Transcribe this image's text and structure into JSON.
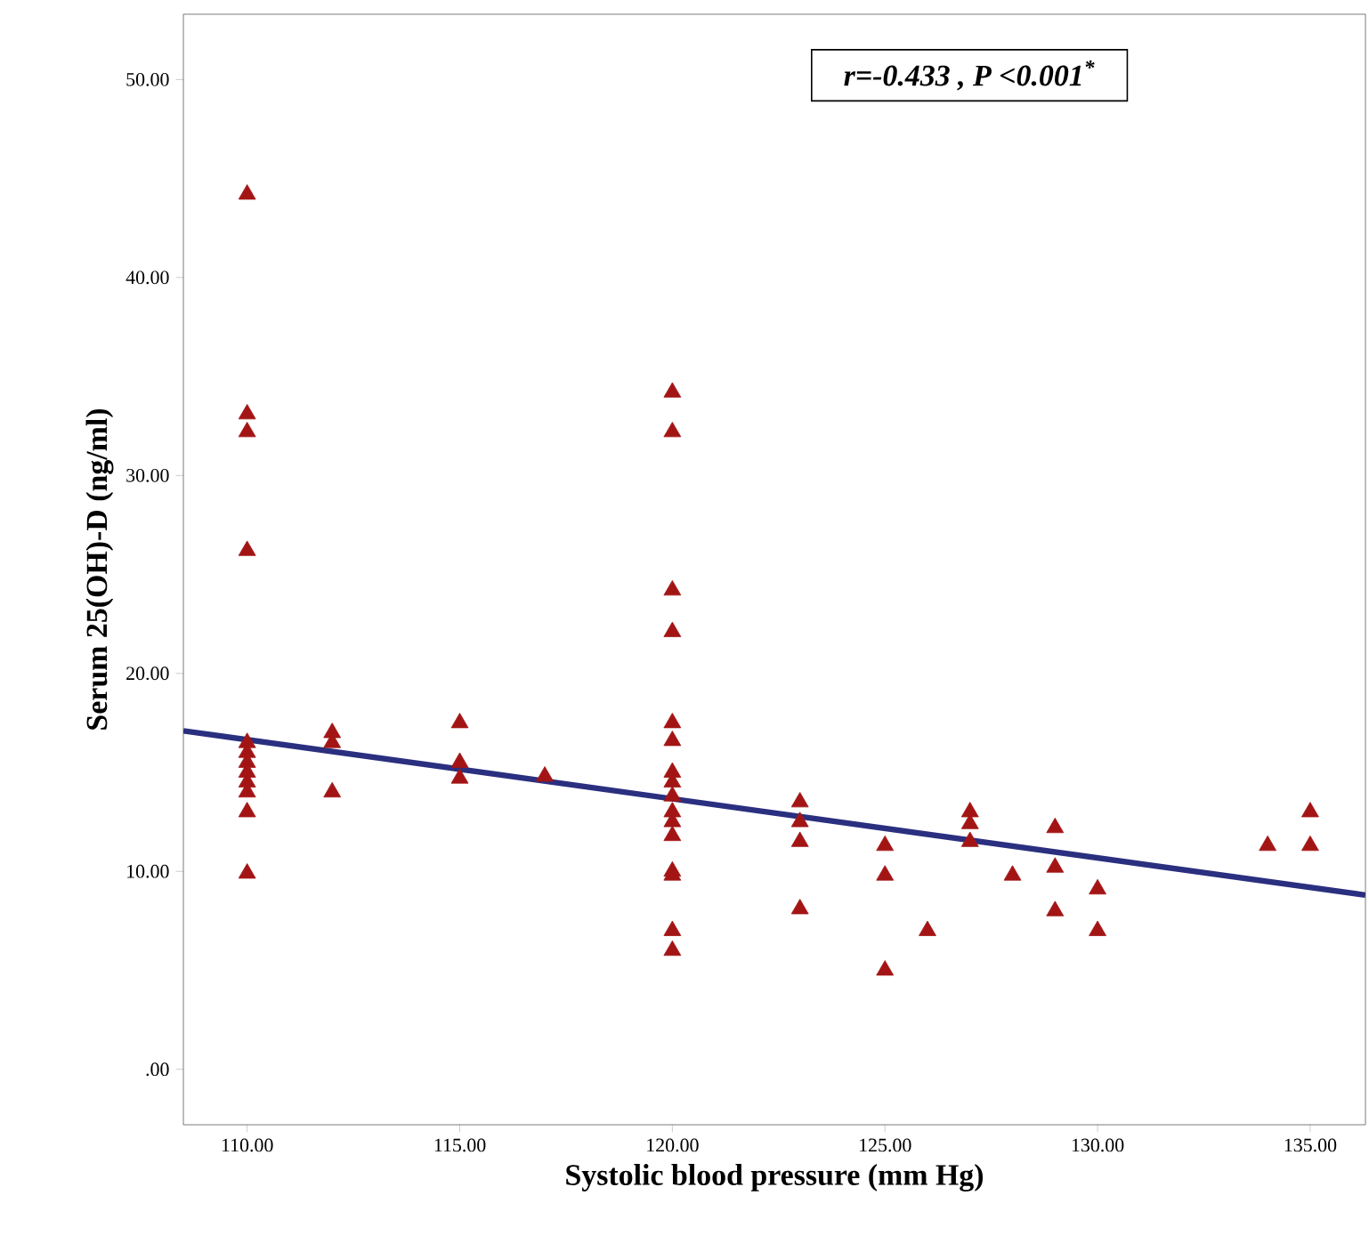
{
  "chart_data": {
    "type": "scatter",
    "xlabel": "Systolic blood pressure (mm Hg)",
    "ylabel": "Serum 25(OH)-D (ng/ml)",
    "annotations": [
      "r=-0.433 , P <0.001$^{*}$"
    ],
    "xlim": [
      108.5,
      136.3
    ],
    "ylim": [
      -2.8,
      53.3
    ],
    "xticks": [
      {
        "value": 110,
        "label": "110.00"
      },
      {
        "value": 115,
        "label": "115.00"
      },
      {
        "value": 120,
        "label": "120.00"
      },
      {
        "value": 125,
        "label": "125.00"
      },
      {
        "value": 130,
        "label": "130.00"
      },
      {
        "value": 135,
        "label": "135.00"
      }
    ],
    "yticks": [
      {
        "value": 0,
        "label": ".00"
      },
      {
        "value": 10,
        "label": "10.00"
      },
      {
        "value": 20,
        "label": "20.00"
      },
      {
        "value": 30,
        "label": "30.00"
      },
      {
        "value": 40,
        "label": "40.00"
      },
      {
        "value": 50,
        "label": "50.00"
      }
    ],
    "grid": false,
    "marker": "triangle",
    "series": [
      {
        "color": "#a31515",
        "x": [
          110,
          110,
          110,
          110,
          110,
          110,
          110,
          110,
          110,
          110,
          110,
          110,
          112,
          112,
          112,
          115,
          115,
          115,
          117,
          120,
          120,
          120,
          120,
          120,
          120,
          120,
          120,
          120,
          120,
          120,
          120,
          120,
          120,
          120,
          120,
          123,
          123,
          123,
          123,
          125,
          125,
          125,
          126,
          127,
          127,
          127,
          128,
          129,
          129,
          129,
          130,
          130,
          134,
          135,
          135
        ],
        "values": [
          44.2,
          33.1,
          32.2,
          26.2,
          16.5,
          16,
          15.5,
          15,
          14.5,
          14,
          13,
          9.9,
          17,
          16.5,
          14,
          17.5,
          15.5,
          14.7,
          14.8,
          34.2,
          32.2,
          24.2,
          22.1,
          17.5,
          16.6,
          15,
          14.5,
          13.8,
          13,
          12.5,
          11.8,
          10,
          9.8,
          7,
          6,
          13.5,
          12.5,
          11.5,
          8.1,
          11.3,
          9.8,
          5,
          7,
          13,
          12.4,
          11.5,
          9.8,
          12.2,
          10.2,
          8,
          9.1,
          7,
          11.3,
          13,
          11.3
        ]
      },
      {
        "type": "line",
        "color": "#2b2f7f",
        "marker": "none",
        "x": [
          108.5,
          136.3
        ],
        "values": [
          17.1,
          8.8
        ]
      }
    ]
  }
}
